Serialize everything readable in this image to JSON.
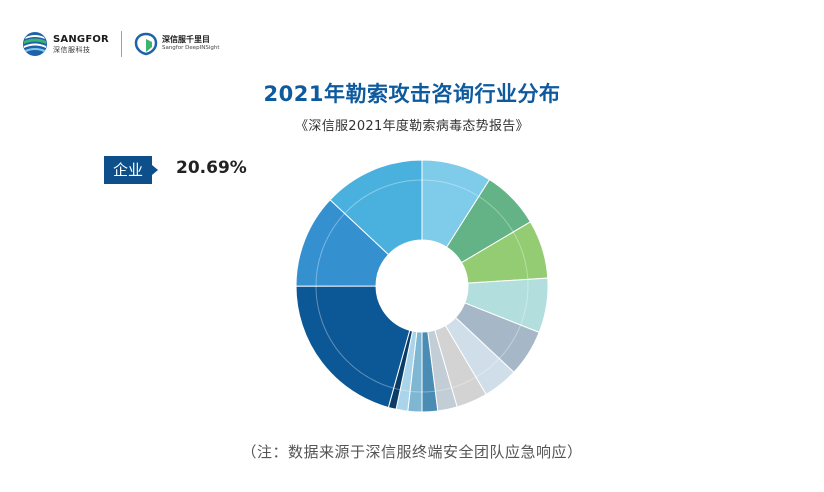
{
  "logos": {
    "sangfor_en": "SANGFOR",
    "sangfor_cn": "深信服科技",
    "deepinsight_cn": "深信服千里目",
    "deepinsight_en": "Sangfor DeepINSight"
  },
  "colors": {
    "title": "#0e5a9e",
    "tag_bg": "#0d4f8b"
  },
  "highlight": {
    "label": "企业",
    "value": "20.69%"
  },
  "chart_data": {
    "type": "pie",
    "donut": true,
    "title": "2021年勒索攻击咨询行业分布",
    "subtitle": "《深信服2021年度勒索病毒态势报告》",
    "labels_printed": false,
    "start_angle_deg": 0,
    "direction": "clockwise",
    "slices": [
      {
        "value": 9.0,
        "color": "#7ecbea"
      },
      {
        "value": 7.5,
        "color": "#63b387"
      },
      {
        "value": 7.5,
        "color": "#93cc72"
      },
      {
        "value": 7.0,
        "color": "#b2dede"
      },
      {
        "value": 6.0,
        "color": "#a6b8c8"
      },
      {
        "value": 4.5,
        "color": "#d0deea"
      },
      {
        "value": 4.0,
        "color": "#d3d3d3"
      },
      {
        "value": 2.5,
        "color": "#c2cdd6"
      },
      {
        "value": 2.0,
        "color": "#4a8cb3"
      },
      {
        "value": 1.8,
        "color": "#7fb7d3"
      },
      {
        "value": 1.5,
        "color": "#a9d4ea"
      },
      {
        "value": 1.0,
        "color": "#0a3d66"
      },
      {
        "value": 20.69,
        "color": "#0c5796"
      },
      {
        "value": 12.0,
        "color": "#3590d0"
      },
      {
        "value": 13.01,
        "color": "#4ab1de"
      }
    ]
  },
  "footnote": "（注：数据来源于深信服终端安全团队应急响应）"
}
